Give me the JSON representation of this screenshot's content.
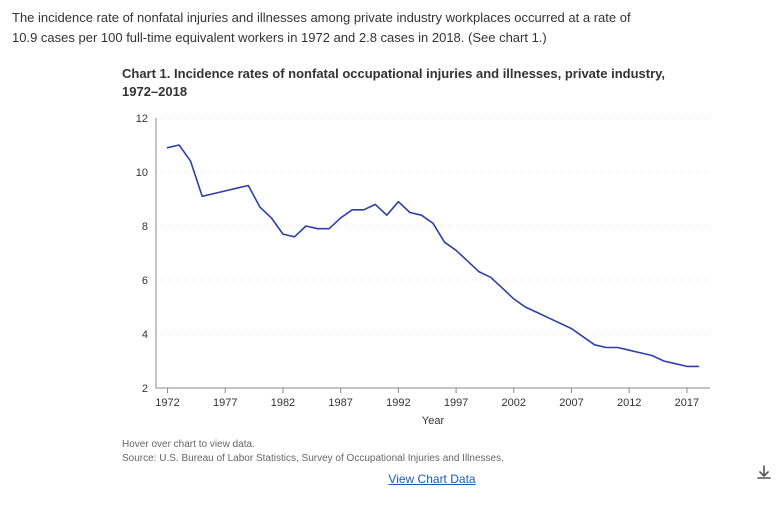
{
  "intro_line1": "The incidence rate of nonfatal injuries and illnesses among private industry workplaces occurred at a rate of",
  "intro_line2": "10.9 cases per 100 full-time equivalent workers in 1972 and 2.8 cases in 2018. (See chart 1.)",
  "chart": {
    "type": "line",
    "title": "Chart 1. Incidence rates of nonfatal occupational injuries and illnesses, private industry, 1972–2018",
    "xlabel": "Year",
    "xlim": [
      1971,
      2019
    ],
    "xticks": [
      1972,
      1977,
      1982,
      1987,
      1992,
      1997,
      2002,
      2007,
      2012,
      2017
    ],
    "ylim": [
      2,
      12
    ],
    "yticks": [
      2,
      4,
      6,
      8,
      10,
      12
    ],
    "grid_color": "#dddddd",
    "axis_color": "#888888",
    "line_color": "#2f3fa8",
    "line_width": 1.6,
    "tick_font_size": 11,
    "label_font_size": 11,
    "background_color": "#ffffff",
    "years": [
      1972,
      1973,
      1974,
      1975,
      1976,
      1977,
      1978,
      1979,
      1980,
      1981,
      1982,
      1983,
      1984,
      1985,
      1986,
      1987,
      1988,
      1989,
      1990,
      1991,
      1992,
      1993,
      1994,
      1995,
      1996,
      1997,
      1998,
      1999,
      2000,
      2001,
      2002,
      2003,
      2004,
      2005,
      2006,
      2007,
      2008,
      2009,
      2010,
      2011,
      2012,
      2013,
      2014,
      2015,
      2016,
      2017,
      2018
    ],
    "values": [
      10.9,
      11.0,
      10.4,
      9.1,
      9.2,
      9.3,
      9.4,
      9.5,
      8.7,
      8.3,
      7.7,
      7.6,
      8.0,
      7.9,
      7.9,
      8.3,
      8.6,
      8.6,
      8.8,
      8.4,
      8.9,
      8.5,
      8.4,
      8.1,
      7.4,
      7.1,
      6.7,
      6.3,
      6.1,
      5.7,
      5.3,
      5.0,
      4.8,
      4.6,
      4.4,
      4.2,
      3.9,
      3.6,
      3.5,
      3.5,
      3.4,
      3.3,
      3.2,
      3.0,
      2.9,
      2.8,
      2.8
    ]
  },
  "note_line1": "Hover over chart to view data.",
  "note_line2": "Source: U.S. Bureau of Labor Statistics, Survey of Occupational Injuries and Illnesses.",
  "view_link_label": "View Chart Data",
  "download_icon": "download-icon"
}
